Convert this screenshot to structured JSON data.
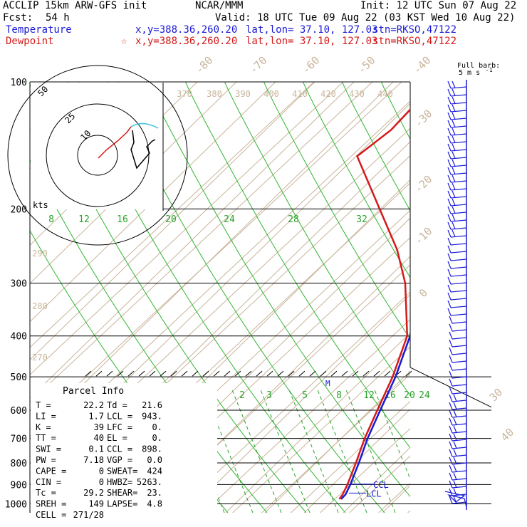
{
  "header": {
    "model": "ACCLIP 15km ARW-GFS init",
    "org": "NCAR/MMM",
    "init": "Init: 12 UTC Sun 07 Aug 22",
    "fcst_label": "Fcst:",
    "fcst_value": "54 h",
    "valid": "Valid: 18 UTC Tue 09 Aug 22 (03 KST Wed 10 Aug 22)",
    "temp_label": "Temperature",
    "temp_xy": "x,y=388.36,260.20",
    "temp_latlon": "lat,lon= 37.10, 127.03",
    "temp_stn": "stn=RKSO,47122",
    "dew_label": "Dewpoint",
    "dew_star": "☆",
    "dew_xy": "x,y=388.36,260.20",
    "dew_latlon": "lat,lon= 37.10, 127.03",
    "dew_stn": "stn=RKSO,47122"
  },
  "barb_legend": {
    "line1": "Full barb:",
    "line2": "5 m s",
    "sup": "-1"
  },
  "hodograph": {
    "rings": [
      "50",
      "25",
      "10"
    ],
    "units": "kts"
  },
  "parcel": {
    "title": "Parcel Info",
    "rows": [
      [
        "T   =",
        "22.2",
        "Td =",
        "21.6"
      ],
      [
        "LI  =",
        "1.7",
        "LCL =",
        "943."
      ],
      [
        "K   =",
        "39",
        "LFC =",
        "0."
      ],
      [
        "TT  =",
        "40",
        "EL  =",
        "0."
      ],
      [
        "SWI =",
        "0.1",
        "CCL =",
        "898."
      ],
      [
        "PW  =",
        "7.18",
        "VGP =",
        "0.0"
      ],
      [
        "CAPE =",
        "0",
        "SWEAT=",
        "424"
      ],
      [
        "CIN  =",
        "0",
        "HWBZ=",
        "5263."
      ],
      [
        "Tc   =",
        "29.2",
        "SHEAR=",
        "23."
      ],
      [
        "SREH =",
        "149",
        "LAPSE=",
        "4.8"
      ],
      [
        "CELL =",
        "271/28",
        "",
        ""
      ]
    ]
  },
  "chart_data": {
    "type": "line",
    "title": "",
    "ylabel": "",
    "xlabel": "",
    "y_scale": "log pressure",
    "pressure_ticks": [
      "100",
      "200",
      "300",
      "400",
      "500",
      "600",
      "700",
      "800",
      "900",
      "1000"
    ],
    "isotherm_labels": [
      "-80",
      "-70",
      "-60",
      "-50",
      "-40",
      "-30",
      "-20",
      "-10",
      "0",
      "10",
      "20",
      "30",
      "40"
    ],
    "theta_labels": [
      "370",
      "380",
      "390",
      "400",
      "410",
      "420",
      "430",
      "440",
      "290",
      "280",
      "270"
    ],
    "mixing_ratio_labels_upper": [
      "8",
      "12",
      "16",
      "20",
      "24",
      "28",
      "32"
    ],
    "mixing_ratio_labels_lower": [
      "2",
      "3",
      "5",
      "8",
      "12",
      "16",
      "20",
      "24"
    ],
    "level_markers": [
      "CCL",
      "LCL"
    ],
    "mixing_marker": "M",
    "series": [
      {
        "name": "Temperature",
        "color": "#1a1ad6",
        "points": [
          [
            100,
            -72
          ],
          [
            130,
            -76
          ],
          [
            150,
            -75
          ],
          [
            200,
            -55
          ],
          [
            250,
            -42
          ],
          [
            300,
            -30
          ],
          [
            400,
            -14
          ],
          [
            500,
            -4
          ],
          [
            600,
            3
          ],
          [
            700,
            9
          ],
          [
            800,
            15
          ],
          [
            900,
            20
          ],
          [
            950,
            22
          ],
          [
            975,
            22.2
          ]
        ]
      },
      {
        "name": "Dewpoint",
        "color": "#d41a1a",
        "points": [
          [
            100,
            -92
          ],
          [
            115,
            -97
          ],
          [
            130,
            -96
          ],
          [
            150,
            -98
          ],
          [
            200,
            -71
          ],
          [
            250,
            -50
          ],
          [
            300,
            -35
          ],
          [
            400,
            -15
          ],
          [
            500,
            -5
          ],
          [
            600,
            2
          ],
          [
            700,
            8
          ],
          [
            800,
            14
          ],
          [
            900,
            19
          ],
          [
            950,
            21
          ],
          [
            975,
            21.6
          ]
        ]
      }
    ],
    "wind_barbs": {
      "note": "wind barbs along right edge from 100 to 1000 hPa"
    }
  },
  "colors": {
    "temperature": "#1a1ad6",
    "dewpoint": "#d41a1a",
    "isotherm": "#c8b49a",
    "mixing_ratio": "#29a329",
    "moist_adiabat": "#2fb52f",
    "barb": "#1a1ad6"
  }
}
